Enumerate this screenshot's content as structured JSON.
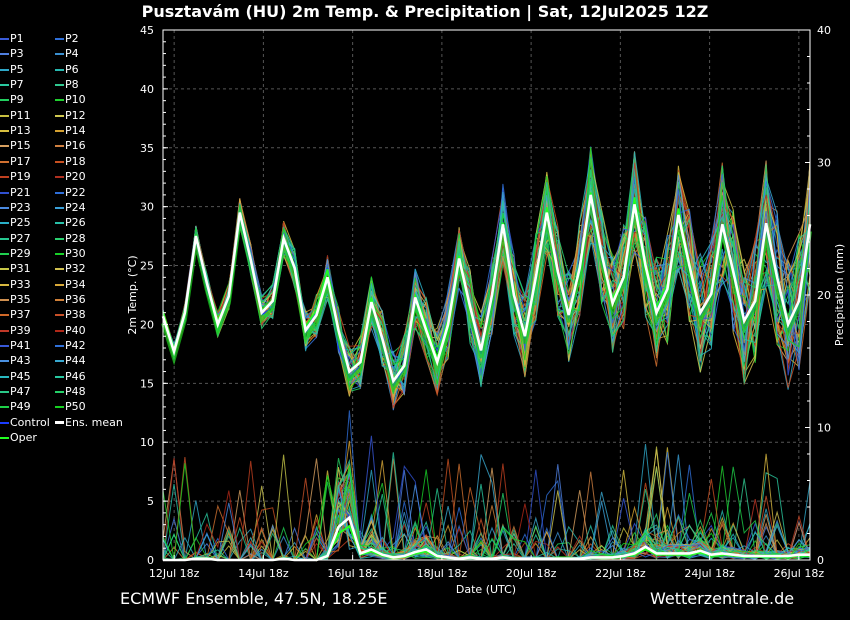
{
  "title": "Pusztavám  (HU)  2m Temp. & Precipitation | Sat, 12Jul2025 12Z",
  "footer": {
    "left": "ECMWF Ensemble, 47.5N, 18.25E",
    "right": "Wetterzentrale.de"
  },
  "legend": [
    {
      "label": "P1",
      "color": "#3a5bd9"
    },
    {
      "label": "P2",
      "color": "#2f6fd8"
    },
    {
      "label": "P3",
      "color": "#4f7fe0"
    },
    {
      "label": "P4",
      "color": "#3a8fd0"
    },
    {
      "label": "P5",
      "color": "#2ea8c8"
    },
    {
      "label": "P6",
      "color": "#27b8b0"
    },
    {
      "label": "P7",
      "color": "#2ac9a0"
    },
    {
      "label": "P8",
      "color": "#30c890"
    },
    {
      "label": "P9",
      "color": "#22d060"
    },
    {
      "label": "P10",
      "color": "#20d030"
    },
    {
      "label": "P11",
      "color": "#c8c040"
    },
    {
      "label": "P12",
      "color": "#d0c850"
    },
    {
      "label": "P13",
      "color": "#d8c040"
    },
    {
      "label": "P14",
      "color": "#d4a030"
    },
    {
      "label": "P15",
      "color": "#d8a060"
    },
    {
      "label": "P16",
      "color": "#d08040"
    },
    {
      "label": "P17",
      "color": "#d07030"
    },
    {
      "label": "P18",
      "color": "#c85020"
    },
    {
      "label": "P19",
      "color": "#c04020"
    },
    {
      "label": "P20",
      "color": "#b03020"
    },
    {
      "label": "P21",
      "color": "#3050d0"
    },
    {
      "label": "P22",
      "color": "#2e6ed8"
    },
    {
      "label": "P23",
      "color": "#4a8ae0"
    },
    {
      "label": "P24",
      "color": "#3aa0d8"
    },
    {
      "label": "P25",
      "color": "#2ab0c8"
    },
    {
      "label": "P26",
      "color": "#28c0a8"
    },
    {
      "label": "P27",
      "color": "#26c890"
    },
    {
      "label": "P28",
      "color": "#2ad070"
    },
    {
      "label": "P29",
      "color": "#20d050"
    },
    {
      "label": "P30",
      "color": "#18d028"
    },
    {
      "label": "P31",
      "color": "#c8c848"
    },
    {
      "label": "P32",
      "color": "#d0c050"
    },
    {
      "label": "P33",
      "color": "#d8b840"
    },
    {
      "label": "P34",
      "color": "#d8a838"
    },
    {
      "label": "P35",
      "color": "#d09050"
    },
    {
      "label": "P36",
      "color": "#d08038"
    },
    {
      "label": "P37",
      "color": "#d06828"
    },
    {
      "label": "P38",
      "color": "#c85028"
    },
    {
      "label": "P39",
      "color": "#c03828"
    },
    {
      "label": "P40",
      "color": "#b02818"
    },
    {
      "label": "P41",
      "color": "#3858d8"
    },
    {
      "label": "P42",
      "color": "#3070d8"
    },
    {
      "label": "P43",
      "color": "#4a90e0"
    },
    {
      "label": "P44",
      "color": "#38a8d0"
    },
    {
      "label": "P45",
      "color": "#28b8c0"
    },
    {
      "label": "P46",
      "color": "#28c8a0"
    },
    {
      "label": "P47",
      "color": "#2ac888"
    },
    {
      "label": "P48",
      "color": "#24d068"
    },
    {
      "label": "P49",
      "color": "#1ed048"
    },
    {
      "label": "P50",
      "color": "#16d020"
    },
    {
      "label": "Control",
      "color": "#1a3cff"
    },
    {
      "label": "Ens. mean",
      "color": "#ffffff"
    },
    {
      "label": "Oper",
      "color": "#22ff22"
    }
  ],
  "chart_data": {
    "type": "line",
    "xlabel": "Date (UTC)",
    "ylabel": "2m Temp. (°C)",
    "ylabel_right": "Precipitation (mm)",
    "ylim": [
      0,
      45
    ],
    "ylim_right": [
      0,
      40
    ],
    "yticks": [
      0,
      5,
      10,
      15,
      20,
      25,
      30,
      35,
      40,
      45
    ],
    "yticks_right": [
      0,
      10,
      20,
      30,
      40
    ],
    "xlim_hours": [
      0,
      348
    ],
    "xticks": [
      {
        "label": "12Jul 18z",
        "hour": 6
      },
      {
        "label": "14Jul 18z",
        "hour": 54
      },
      {
        "label": "16Jul 18z",
        "hour": 102
      },
      {
        "label": "18Jul 18z",
        "hour": 150
      },
      {
        "label": "20Jul 18z",
        "hour": 198
      },
      {
        "label": "22Jul 18z",
        "hour": 246
      },
      {
        "label": "24Jul 18z",
        "hour": 294
      },
      {
        "label": "26Jul 18z",
        "hour": 342
      }
    ],
    "grid": true,
    "ens_mean_temp": [
      20.7,
      17.7,
      21,
      27.5,
      23.5,
      20,
      22.4,
      29.5,
      25.5,
      21,
      22,
      27.3,
      24.8,
      19.5,
      20.8,
      24,
      19.5,
      16,
      16.8,
      21.9,
      18.8,
      15.2,
      16.5,
      22.3,
      19.5,
      16.8,
      20,
      25.6,
      21.5,
      17.8,
      22.5,
      28.5,
      22.5,
      19,
      24,
      29.5,
      24.5,
      20.8,
      24.8,
      31,
      26,
      21.8,
      24,
      30.2,
      25,
      21,
      23,
      29.3,
      25,
      21,
      22.6,
      28.5,
      24.5,
      20.3,
      22,
      28.6,
      24,
      20,
      22,
      28.5
    ],
    "ens_mean_precip": [
      0,
      0,
      0,
      0.1,
      0.1,
      0,
      0,
      0,
      0,
      0,
      0,
      0.1,
      0,
      0,
      0,
      0.3,
      2.5,
      3.2,
      0.5,
      0.8,
      0.4,
      0.2,
      0.3,
      0.6,
      0.8,
      0.3,
      0.2,
      0.1,
      0.2,
      0.1,
      0.1,
      0.2,
      0.1,
      0.1,
      0.1,
      0.1,
      0.1,
      0.1,
      0.1,
      0.2,
      0.2,
      0.2,
      0.3,
      0.5,
      1,
      0.5,
      0.5,
      0.5,
      0.5,
      0.7,
      0.4,
      0.5,
      0.4,
      0.3,
      0.3,
      0.3,
      0.3,
      0.3,
      0.4,
      0.4
    ],
    "control_temp": [
      20.9,
      17.5,
      21,
      27,
      23,
      20.1,
      22,
      29,
      25,
      20.8,
      21.5,
      27,
      24.5,
      19.6,
      21,
      24.8,
      18,
      15.5,
      16.5,
      22,
      18,
      14.8,
      16.2,
      22,
      20,
      17,
      20.3,
      25.5,
      21.2,
      17.5,
      22,
      28.2,
      22,
      18.8,
      23.5,
      29.8,
      24,
      20.5,
      25,
      30.8,
      25.5,
      22,
      23.7,
      30.8,
      25.2,
      21.4,
      23.3,
      29.8,
      25.2,
      20.7,
      22,
      28,
      24.2,
      19.8,
      21.5,
      28,
      23.5,
      19.5,
      21.5,
      28
    ]
  }
}
